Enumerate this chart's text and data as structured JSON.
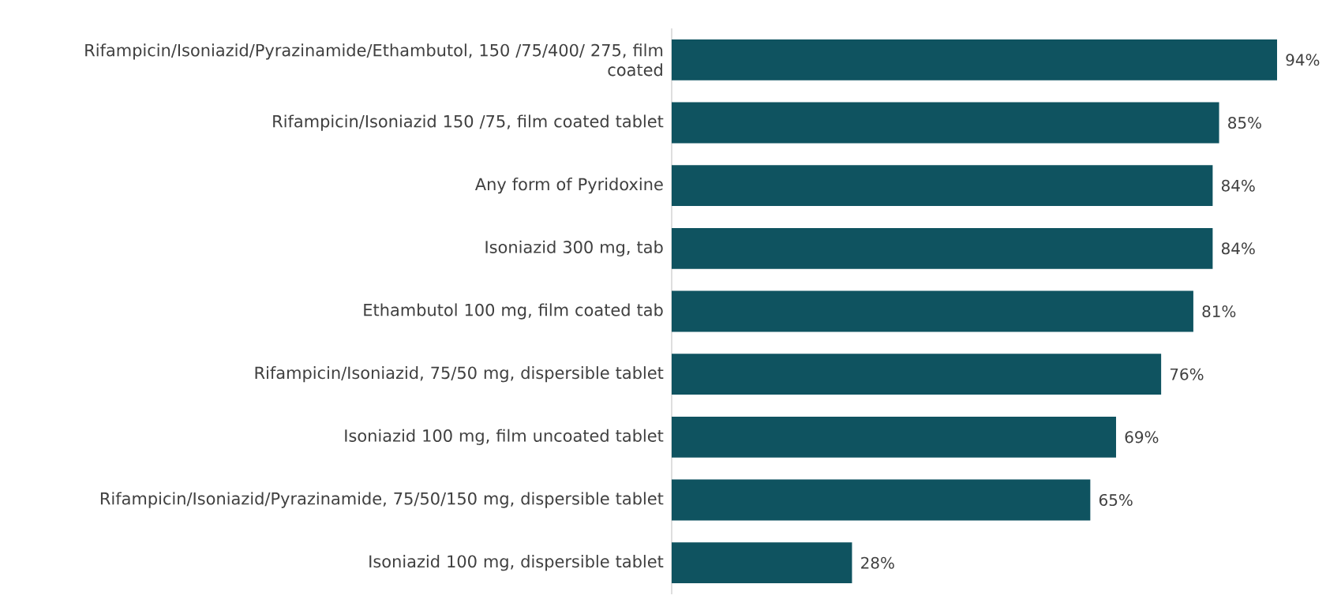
{
  "chart_data": {
    "type": "bar",
    "orientation": "horizontal",
    "categories": [
      "Rifampicin/Isoniazid/Pyrazinamide/Ethambutol, 150 /75/400/ 275, film coated",
      "Rifampicin/Isoniazid 150 /75, film coated tablet",
      "Any form of Pyridoxine",
      "Isoniazid 300 mg, tab",
      "Ethambutol 100 mg, film coated tab",
      "Rifampicin/Isoniazid, 75/50 mg, dispersible tablet",
      "Isoniazid 100 mg, film uncoated tablet",
      "Rifampicin/Isoniazid/Pyrazinamide, 75/50/150 mg, dispersible tablet",
      "Isoniazid 100 mg, dispersible tablet"
    ],
    "values": [
      94,
      85,
      84,
      84,
      81,
      76,
      69,
      65,
      28
    ],
    "value_labels": [
      "94%",
      "85%",
      "84%",
      "84%",
      "81%",
      "76%",
      "69%",
      "65%",
      "28%"
    ],
    "color": "#0f5360"
  }
}
